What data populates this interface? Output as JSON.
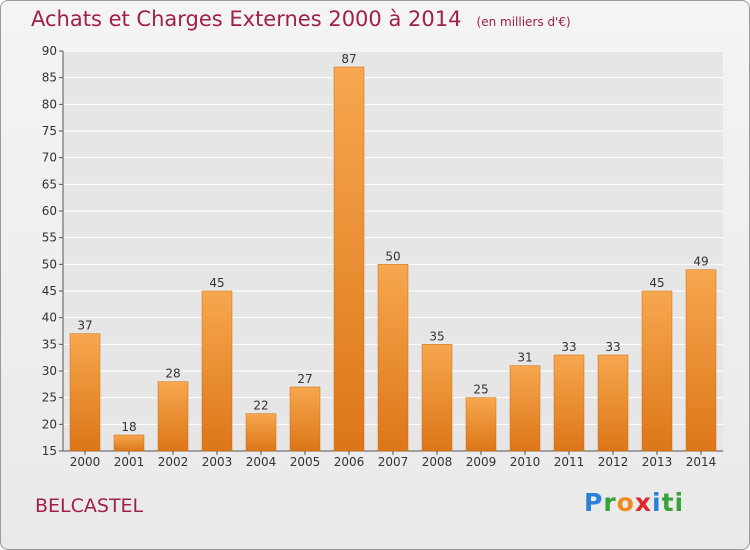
{
  "title": "Achats et Charges Externes 2000 à 2014",
  "subtitle": "(en milliers d'€)",
  "commune": "BELCASTEL",
  "logo_text": "Proxiti",
  "colors": {
    "title": "#a0204a",
    "bar_top": "#f7a74f",
    "bar_bottom": "#dc7618",
    "grid": "#ffffff",
    "axis": "#555555"
  },
  "chart_data": {
    "type": "bar",
    "title": "Achats et Charges Externes 2000 à 2014",
    "subtitle": "(en milliers d'€)",
    "categories": [
      "2000",
      "2001",
      "2002",
      "2003",
      "2004",
      "2005",
      "2006",
      "2007",
      "2008",
      "2009",
      "2010",
      "2011",
      "2012",
      "2013",
      "2014"
    ],
    "values": [
      37,
      18,
      28,
      45,
      22,
      27,
      87,
      50,
      35,
      25,
      31,
      33,
      33,
      45,
      49
    ],
    "ylim": [
      15,
      90
    ],
    "yticks": [
      15,
      20,
      25,
      30,
      35,
      40,
      45,
      50,
      55,
      60,
      65,
      70,
      75,
      80,
      85,
      90
    ],
    "grid": true,
    "xlabel": "",
    "ylabel": ""
  }
}
